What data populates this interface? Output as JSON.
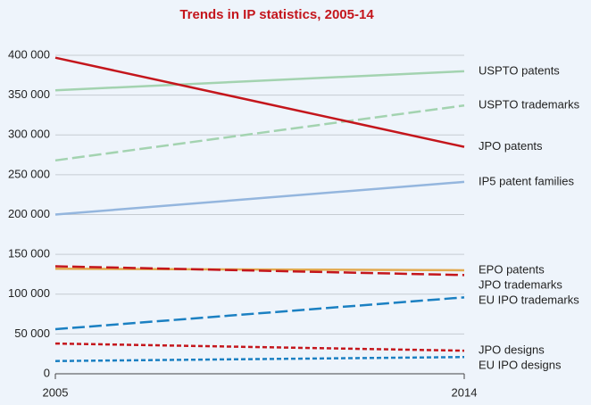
{
  "chart_data": {
    "type": "line",
    "title": "Trends in IP statistics, 2005-14",
    "x": [
      2005,
      2014
    ],
    "xlim": [
      2005,
      2014
    ],
    "xticks": [
      2005,
      2014
    ],
    "ylim": [
      0,
      400000
    ],
    "yticks": [
      0,
      {
        "value": 50000,
        "label": "50 000"
      },
      {
        "value": 100000,
        "label": "100 000"
      },
      {
        "value": 150000,
        "label": "150 000"
      },
      {
        "value": 200000,
        "label": "200 000"
      },
      {
        "value": 250000,
        "label": "250 000"
      },
      {
        "value": 300000,
        "label": "300 000"
      },
      {
        "value": 350000,
        "label": "350 000"
      },
      {
        "value": 400000,
        "label": "400 000"
      }
    ],
    "grid": true,
    "series": [
      {
        "name": "USPTO patents",
        "color": "#a3d3b0",
        "style": "solid",
        "values": [
          356000,
          380000
        ]
      },
      {
        "name": "USPTO trademarks",
        "color": "#a3d3b0",
        "style": "dashed",
        "values": [
          268000,
          337000
        ]
      },
      {
        "name": "JPO patents",
        "color": "#c4161c",
        "style": "solid",
        "values": [
          397000,
          285000
        ]
      },
      {
        "name": "IP5 patent families",
        "color": "#94b6de",
        "style": "solid",
        "values": [
          200000,
          241000
        ]
      },
      {
        "name": "EPO patents",
        "color": "#e2a94e",
        "style": "solid",
        "values": [
          132000,
          130000
        ]
      },
      {
        "name": "JPO trademarks",
        "color": "#c4161c",
        "style": "dashed",
        "values": [
          135000,
          124000
        ]
      },
      {
        "name": "EU IPO trademarks",
        "color": "#1b80c2",
        "style": "dashed",
        "values": [
          56000,
          96000
        ]
      },
      {
        "name": "JPO designs",
        "color": "#c4161c",
        "style": "dotted",
        "values": [
          38000,
          29000
        ]
      },
      {
        "name": "EU IPO designs",
        "color": "#1b80c2",
        "style": "dotted",
        "values": [
          16000,
          21000
        ]
      }
    ]
  }
}
